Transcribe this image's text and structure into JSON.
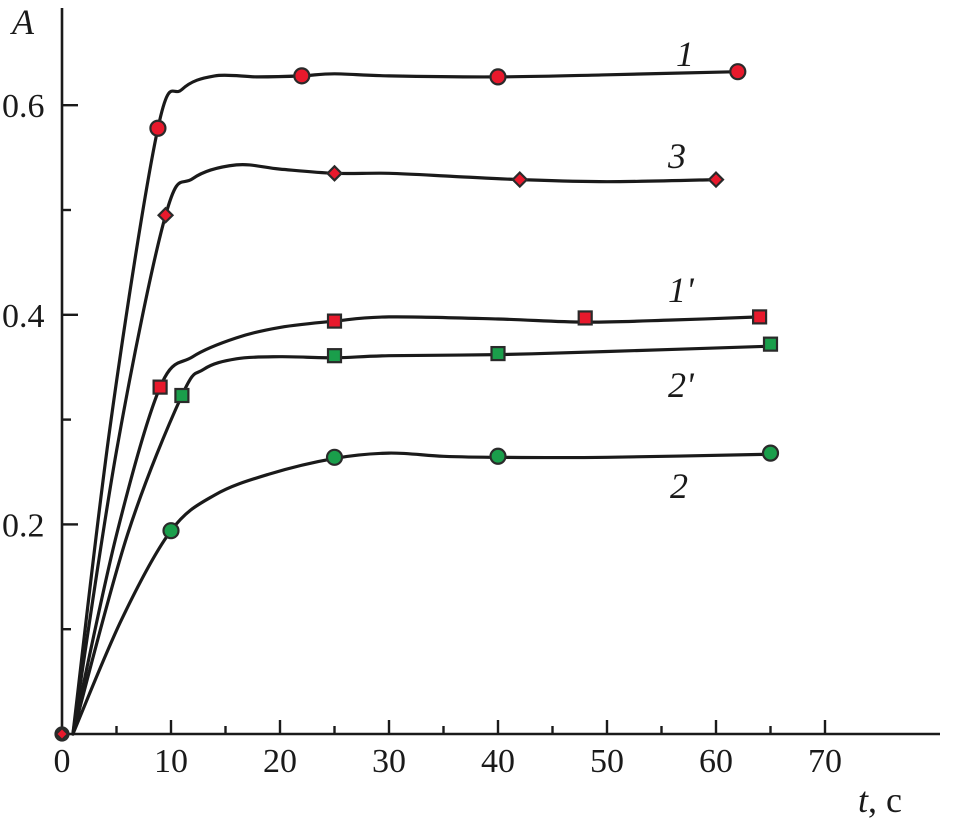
{
  "chart_data": {
    "type": "line",
    "title": "",
    "xlabel": "t",
    "xlabel_unit": ", c",
    "ylabel": "A",
    "xlim": [
      0,
      70
    ],
    "ylim": [
      0.0,
      0.7
    ],
    "x_ticks": [
      {
        "value": 0,
        "label": "0"
      },
      {
        "value": 10,
        "label": "10"
      },
      {
        "value": 20,
        "label": "20"
      },
      {
        "value": 30,
        "label": "30"
      },
      {
        "value": 40,
        "label": "40"
      },
      {
        "value": 50,
        "label": "50"
      },
      {
        "value": 60,
        "label": "60"
      },
      {
        "value": 70,
        "label": "70"
      }
    ],
    "y_ticks": [
      {
        "value": 0.2,
        "label": "0.2"
      },
      {
        "value": 0.4,
        "label": "0.4"
      },
      {
        "value": 0.6,
        "label": "0.6"
      }
    ],
    "grid": false,
    "legend": "inline labels",
    "series": [
      {
        "label": "1",
        "marker": "circle",
        "color": "#e8192c",
        "points": [
          [
            1,
            0.0
          ],
          [
            8.8,
            0.578
          ],
          [
            22,
            0.628
          ],
          [
            40,
            0.627
          ],
          [
            62,
            0.632
          ]
        ],
        "curve": [
          [
            1,
            0.0
          ],
          [
            4.5,
            0.3
          ],
          [
            8.8,
            0.578
          ],
          [
            11,
            0.615
          ],
          [
            14,
            0.628
          ],
          [
            18,
            0.627
          ],
          [
            22,
            0.628
          ],
          [
            25,
            0.63
          ],
          [
            30,
            0.628
          ],
          [
            40,
            0.627
          ],
          [
            50,
            0.629
          ],
          [
            62,
            0.632
          ]
        ],
        "label_at": [
          0.5,
          0.652
        ]
      },
      {
        "label": "3",
        "marker": "diamond",
        "color": "#e8192c",
        "points": [
          [
            1,
            0.0
          ],
          [
            9.5,
            0.495
          ],
          [
            25,
            0.535
          ],
          [
            42,
            0.529
          ],
          [
            60,
            0.529
          ]
        ],
        "curve": [
          [
            1,
            0.0
          ],
          [
            5,
            0.27
          ],
          [
            9.5,
            0.495
          ],
          [
            12,
            0.53
          ],
          [
            16,
            0.543
          ],
          [
            20,
            0.539
          ],
          [
            25,
            0.535
          ],
          [
            30,
            0.535
          ],
          [
            36,
            0.532
          ],
          [
            42,
            0.529
          ],
          [
            50,
            0.527
          ],
          [
            60,
            0.529
          ]
        ],
        "label_at": [
          0.5,
          0.552
        ]
      },
      {
        "label": "1'",
        "marker": "square",
        "color": "#e8192c",
        "points": [
          [
            1,
            0.0
          ],
          [
            9,
            0.331
          ],
          [
            25,
            0.394
          ],
          [
            48,
            0.397
          ],
          [
            64,
            0.398
          ]
        ],
        "curve": [
          [
            1,
            0.0
          ],
          [
            5,
            0.19
          ],
          [
            9,
            0.331
          ],
          [
            12,
            0.36
          ],
          [
            16,
            0.378
          ],
          [
            20,
            0.388
          ],
          [
            25,
            0.394
          ],
          [
            30,
            0.398
          ],
          [
            40,
            0.396
          ],
          [
            48,
            0.393
          ],
          [
            56,
            0.395
          ],
          [
            64,
            0.398
          ]
        ],
        "label_at": [
          0.5,
          0.418
        ]
      },
      {
        "label": "2'",
        "marker": "square",
        "color": "#1a9e4b",
        "points": [
          [
            1,
            0.0
          ],
          [
            11,
            0.323
          ],
          [
            25,
            0.361
          ],
          [
            40,
            0.363
          ],
          [
            65,
            0.372
          ]
        ],
        "curve": [
          [
            1,
            0.0
          ],
          [
            6,
            0.19
          ],
          [
            11,
            0.323
          ],
          [
            13,
            0.348
          ],
          [
            16,
            0.358
          ],
          [
            20,
            0.36
          ],
          [
            25,
            0.359
          ],
          [
            30,
            0.361
          ],
          [
            40,
            0.362
          ],
          [
            50,
            0.365
          ],
          [
            65,
            0.37
          ]
        ],
        "label_at": [
          0.5,
          0.327
        ]
      },
      {
        "label": "2",
        "marker": "circle",
        "color": "#1a9e4b",
        "points": [
          [
            1,
            0.0
          ],
          [
            10,
            0.194
          ],
          [
            25,
            0.264
          ],
          [
            40,
            0.265
          ],
          [
            65,
            0.268
          ]
        ],
        "curve": [
          [
            1,
            0.0
          ],
          [
            5.5,
            0.11
          ],
          [
            10,
            0.194
          ],
          [
            14,
            0.228
          ],
          [
            19,
            0.248
          ],
          [
            25,
            0.263
          ],
          [
            30,
            0.268
          ],
          [
            35,
            0.265
          ],
          [
            40,
            0.264
          ],
          [
            50,
            0.264
          ],
          [
            65,
            0.267
          ]
        ],
        "label_at": [
          0.5,
          0.22
        ]
      }
    ]
  }
}
